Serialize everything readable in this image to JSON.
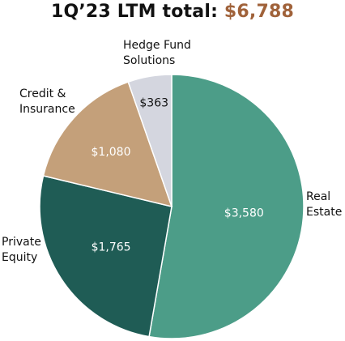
{
  "title_prefix": "1Q’23 LTM total: ",
  "title_total": "$6,788",
  "colors": {
    "total_text": "#a0623a",
    "real_estate": "#4c9d88",
    "private_equity": "#1f5c55",
    "credit_insurance": "#c4a07a",
    "hedge_fund_solutions": "#d4d6df"
  },
  "chart_data": {
    "type": "pie",
    "title": "1Q’23 LTM total: $6,788",
    "slices": [
      {
        "key": "real_estate",
        "category": [
          "Real",
          "Estate"
        ],
        "value": 3580,
        "value_label": "$3,580"
      },
      {
        "key": "private_equity",
        "category": [
          "Private",
          "Equity"
        ],
        "value": 1765,
        "value_label": "$1,765"
      },
      {
        "key": "credit_insurance",
        "category": [
          "Credit &",
          "Insurance"
        ],
        "value": 1080,
        "value_label": "$1,080"
      },
      {
        "key": "hedge_fund_solutions",
        "category": [
          "Hedge Fund",
          "Solutions"
        ],
        "value": 363,
        "value_label": "$363"
      }
    ]
  }
}
